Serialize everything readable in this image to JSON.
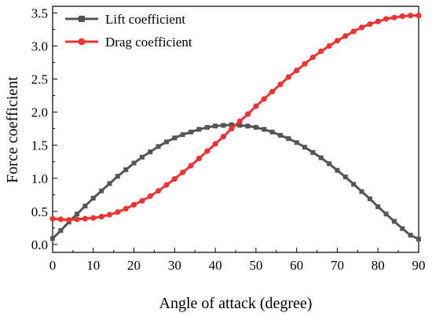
{
  "chart_data": {
    "type": "line",
    "xlabel": "Angle of attack (degree)",
    "ylabel": "Force coefficient",
    "xlim": [
      0,
      90
    ],
    "ylim": [
      -0.12,
      3.6
    ],
    "xticks": [
      0,
      10,
      20,
      30,
      40,
      50,
      60,
      70,
      80,
      90
    ],
    "xtick_labels": [
      "0",
      "10",
      "20",
      "30",
      "40",
      "50",
      "60",
      "70",
      "80",
      "90"
    ],
    "yticks": [
      0.0,
      0.5,
      1.0,
      1.5,
      2.0,
      2.5,
      3.0,
      3.5
    ],
    "ytick_labels": [
      "0.0",
      "0.5",
      "1.0",
      "1.5",
      "2.0",
      "2.5",
      "3.0",
      "3.5"
    ],
    "grid": false,
    "legend_position": "top-left",
    "x": [
      0,
      2,
      4,
      6,
      8,
      10,
      12,
      14,
      16,
      18,
      20,
      22,
      24,
      26,
      28,
      30,
      32,
      34,
      36,
      38,
      40,
      42,
      44,
      46,
      48,
      50,
      52,
      54,
      56,
      58,
      60,
      62,
      64,
      66,
      68,
      70,
      72,
      74,
      76,
      78,
      80,
      82,
      84,
      86,
      88,
      90
    ],
    "series": [
      {
        "name": "Lift coefficient",
        "color": "#555555",
        "marker": "square",
        "values": [
          0.09,
          0.21,
          0.34,
          0.46,
          0.58,
          0.7,
          0.81,
          0.92,
          1.03,
          1.13,
          1.23,
          1.32,
          1.4,
          1.48,
          1.55,
          1.61,
          1.66,
          1.7,
          1.74,
          1.77,
          1.79,
          1.8,
          1.81,
          1.8,
          1.79,
          1.77,
          1.74,
          1.7,
          1.65,
          1.6,
          1.54,
          1.47,
          1.39,
          1.31,
          1.22,
          1.12,
          1.02,
          0.91,
          0.8,
          0.69,
          0.57,
          0.46,
          0.35,
          0.24,
          0.14,
          0.08
        ]
      },
      {
        "name": "Drag coefficient",
        "color": "#EE3333",
        "marker": "circle",
        "values": [
          0.39,
          0.38,
          0.37,
          0.38,
          0.39,
          0.4,
          0.42,
          0.45,
          0.49,
          0.54,
          0.6,
          0.66,
          0.73,
          0.81,
          0.9,
          0.99,
          1.09,
          1.19,
          1.3,
          1.41,
          1.52,
          1.63,
          1.75,
          1.86,
          1.97,
          2.09,
          2.2,
          2.31,
          2.42,
          2.53,
          2.63,
          2.73,
          2.83,
          2.92,
          3.0,
          3.08,
          3.15,
          3.22,
          3.28,
          3.33,
          3.37,
          3.41,
          3.43,
          3.45,
          3.46,
          3.46
        ]
      }
    ]
  }
}
